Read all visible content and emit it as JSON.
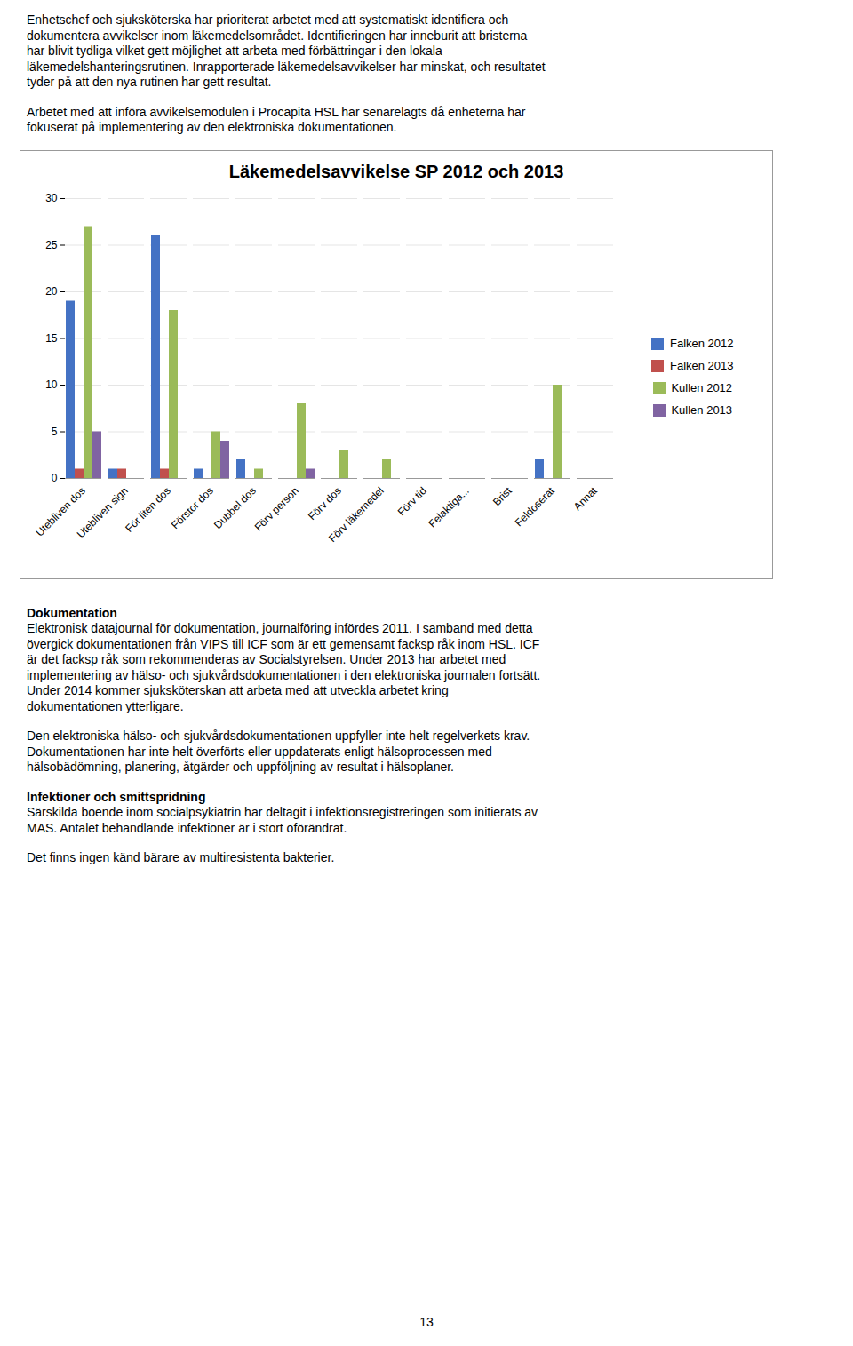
{
  "chart_data": {
    "type": "bar",
    "title": "Läkemedelsavvikelse SP 2012 och 2013",
    "categories": [
      "Utebliven dos",
      "Utebliven sign",
      "För liten dos",
      "Förstor dos",
      "Dubbel dos",
      "Förv person",
      "Förv dos",
      "Förv läkemedel",
      "Förv tid",
      "Felaktiga...",
      "Brist",
      "Feldoserat",
      "Annat"
    ],
    "series": [
      {
        "name": "Falken 2012",
        "color": "#4472C4",
        "values": [
          19,
          1,
          26,
          1,
          2,
          0,
          0,
          0,
          0,
          0,
          0,
          2,
          0
        ]
      },
      {
        "name": "Falken 2013",
        "color": "#C0504D",
        "values": [
          1,
          1,
          1,
          0,
          0,
          0,
          0,
          0,
          0,
          0,
          0,
          0,
          0
        ]
      },
      {
        "name": "Kullen 2012",
        "color": "#9BBB59",
        "values": [
          27,
          0,
          18,
          5,
          1,
          8,
          3,
          2,
          0,
          0,
          0,
          10,
          0
        ]
      },
      {
        "name": "Kullen 2013",
        "color": "#8064A2",
        "values": [
          5,
          0,
          0,
          4,
          0,
          1,
          0,
          0,
          0,
          0,
          0,
          0,
          0
        ]
      }
    ],
    "ylim": [
      0,
      30
    ],
    "yticks": [
      0,
      5,
      10,
      15,
      20,
      25,
      30
    ],
    "grid": true,
    "legend": "right"
  },
  "text_above": [
    [
      "Enhetschef och sjuksköterska har prioriterat arbetet med att systematiskt identifiera och",
      "dokumentera avvikelser inom läkemedelsområdet. Identifieringen har inneburit att bristerna",
      "har blivit tydliga vilket gett möjlighet att arbeta med förbättringar i den lokala",
      "läkemedelshanteringsrutinen. Inrapporterade läkemedelsavvikelser har minskat, och resultatet",
      "tyder på att den nya rutinen har gett resultat."
    ],
    [
      "Arbetet med att införa avvikelsemodulen i Procapita HSL har senarelagts då enheterna har",
      "fokuserat på implementering av den elektroniska dokumentationen."
    ]
  ],
  "text_below": [
    {
      "heading": "Dokumentation",
      "lines": [
        "Elektronisk datajournal för dokumentation, journalföring infördes 2011. I samband med detta",
        "övergick dokumentationen från VIPS till ICF som är ett gemensamt facksp råk inom HSL. ICF",
        "är det facksp råk som rekommenderas av Socialstyrelsen. Under 2013 har arbetet med",
        "implementering av hälso- och sjukvårdsdokumentationen i den elektroniska journalen fortsätt.",
        "Under 2014 kommer sjuksköterskan att arbeta med att utveckla arbetet kring",
        "dokumentationen ytterligare."
      ]
    },
    {
      "lines": [
        "Den elektroniska hälso- och sjukvårdsdokumentationen uppfyller inte helt regelverkets krav.",
        "Dokumentationen har inte helt överförts eller uppdaterats enligt hälsoprocessen med",
        "hälsobädömning, planering, åtgärder och uppföljning av resultat i hälsoplaner."
      ]
    },
    {
      "heading": "Infektioner och smittspridning",
      "lines": [
        "Särskilda boende inom socialpsykiatrin har deltagit i infektionsregistreringen som initierats av",
        "MAS. Antalet behandlande infektioner är i stort oförändrat."
      ]
    },
    {
      "lines": [
        "Det finns ingen känd bärare av multiresistenta bakterier."
      ]
    }
  ],
  "page_number": "13"
}
